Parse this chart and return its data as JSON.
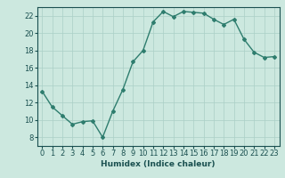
{
  "x": [
    0,
    1,
    2,
    3,
    4,
    5,
    6,
    7,
    8,
    9,
    10,
    11,
    12,
    13,
    14,
    15,
    16,
    17,
    18,
    19,
    20,
    21,
    22,
    23
  ],
  "y": [
    13.3,
    11.5,
    10.5,
    9.5,
    9.8,
    9.9,
    8.0,
    11.0,
    13.5,
    16.7,
    18.0,
    21.3,
    22.5,
    21.9,
    22.5,
    22.4,
    22.3,
    21.6,
    21.0,
    21.6,
    19.3,
    17.8,
    17.2,
    17.3
  ],
  "line_color": "#2e7d6e",
  "marker": "D",
  "marker_size": 2.0,
  "linewidth": 1.0,
  "bg_color": "#cce8df",
  "grid_color": "#aacfc6",
  "axis_color": "#1a5050",
  "xlabel": "Humidex (Indice chaleur)",
  "xlim": [
    -0.5,
    23.5
  ],
  "ylim": [
    7,
    23
  ],
  "yticks": [
    8,
    10,
    12,
    14,
    16,
    18,
    20,
    22
  ],
  "xticks": [
    0,
    1,
    2,
    3,
    4,
    5,
    6,
    7,
    8,
    9,
    10,
    11,
    12,
    13,
    14,
    15,
    16,
    17,
    18,
    19,
    20,
    21,
    22,
    23
  ],
  "xlabel_fontsize": 6.5,
  "tick_fontsize": 6.0
}
